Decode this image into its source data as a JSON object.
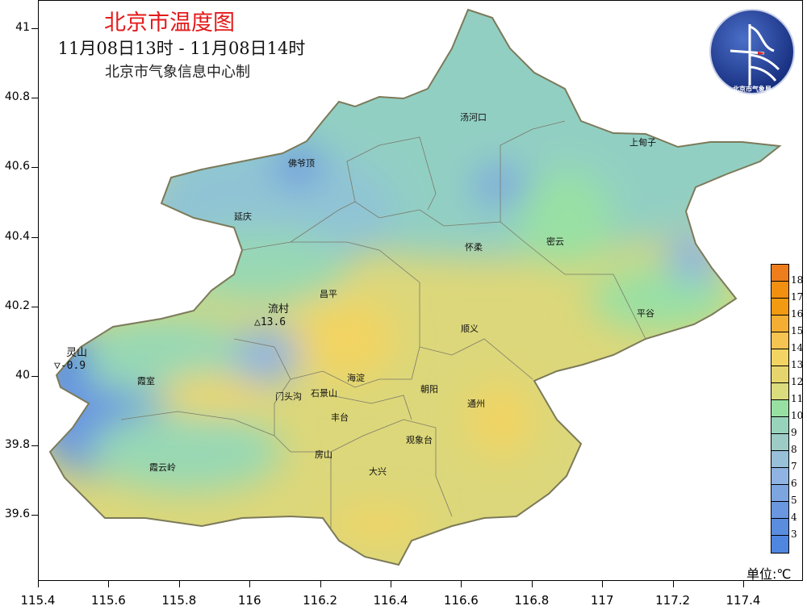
{
  "title": "北京市温度图",
  "time_range": "11月08日13时 - 11月08日14时",
  "producer": "北京市气象信息中心制",
  "logo": {
    "text_en": "BEIJING METEOROLOGICAL BUREAU",
    "text_cn": "北京市气象局"
  },
  "axes": {
    "longitude_ticks": [
      "115.4",
      "115.6",
      "115.8",
      "116",
      "116.2",
      "116.4",
      "116.6",
      "116.8",
      "117",
      "117.2",
      "117.4"
    ],
    "latitude_ticks": [
      "41",
      "40.8",
      "40.6",
      "40.4",
      "40.2",
      "40",
      "39.8",
      "39.6"
    ]
  },
  "districts": [
    "汤河口",
    "上甸子",
    "佛爷顶",
    "延庆",
    "怀柔",
    "密云",
    "昌平",
    "平谷",
    "顺义",
    "霞室",
    "海淀",
    "朝阳",
    "门头沟",
    "石景山",
    "通州",
    "丰台",
    "观象台",
    "房山",
    "霞云岭",
    "大兴"
  ],
  "stations": {
    "max": {
      "name": "流村",
      "value": "13.6",
      "symbol": "△"
    },
    "min": {
      "name": "灵山",
      "value": "-0.9",
      "symbol": "▽"
    }
  },
  "legend": {
    "labels": [
      "18",
      "17",
      "16",
      "15",
      "14",
      "13",
      "12",
      "11",
      "10",
      "9",
      "8",
      "7",
      "6",
      "5",
      "4",
      "3"
    ],
    "colors": [
      "#ee7d1b",
      "#f08f10",
      "#f19a12",
      "#f4ae33",
      "#f6c451",
      "#f2d462",
      "#e6d56c",
      "#dbdc7d",
      "#98e0a2",
      "#98d3bc",
      "#9dccc6",
      "#98c0d8",
      "#8fb3e2",
      "#7da5e0",
      "#6a97e0",
      "#5b8ddf",
      "#4f86e0"
    ],
    "unit": "单位:℃"
  }
}
